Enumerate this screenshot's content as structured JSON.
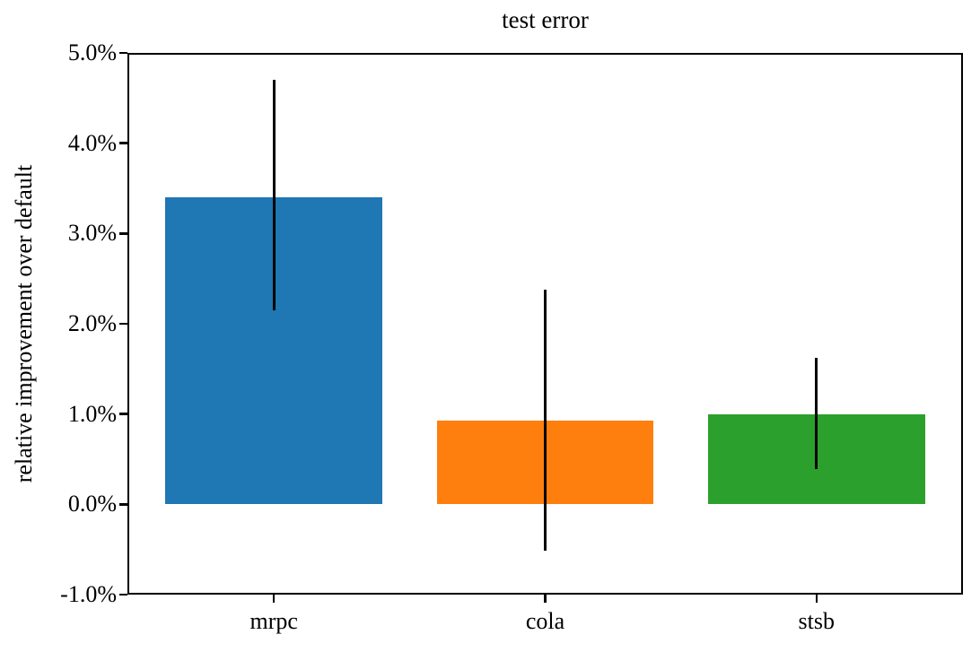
{
  "figure": {
    "title": "test error",
    "ylabel": "relative improvement over default"
  },
  "chart_data": {
    "type": "bar",
    "title": "test error",
    "xlabel": "",
    "ylabel": "relative improvement over default",
    "categories": [
      "mrpc",
      "cola",
      "stsb"
    ],
    "values": [
      3.4,
      0.93,
      1.0
    ],
    "error_low": [
      2.15,
      -0.51,
      0.39
    ],
    "error_high": [
      4.7,
      2.38,
      1.62
    ],
    "bar_colors": [
      "#1f77b4",
      "#ff7f0e",
      "#2ca02c"
    ],
    "error_bar_color": "#000000",
    "y_ticks": [
      -1.0,
      0.0,
      1.0,
      2.0,
      3.0,
      4.0,
      5.0
    ],
    "y_tick_labels": [
      "-1.0%",
      "0.0%",
      "1.0%",
      "2.0%",
      "3.0%",
      "4.0%",
      "5.0%"
    ],
    "ylim": [
      -1.0,
      5.0
    ],
    "bar_width_fraction": 0.8,
    "grid": false,
    "legend": null
  }
}
